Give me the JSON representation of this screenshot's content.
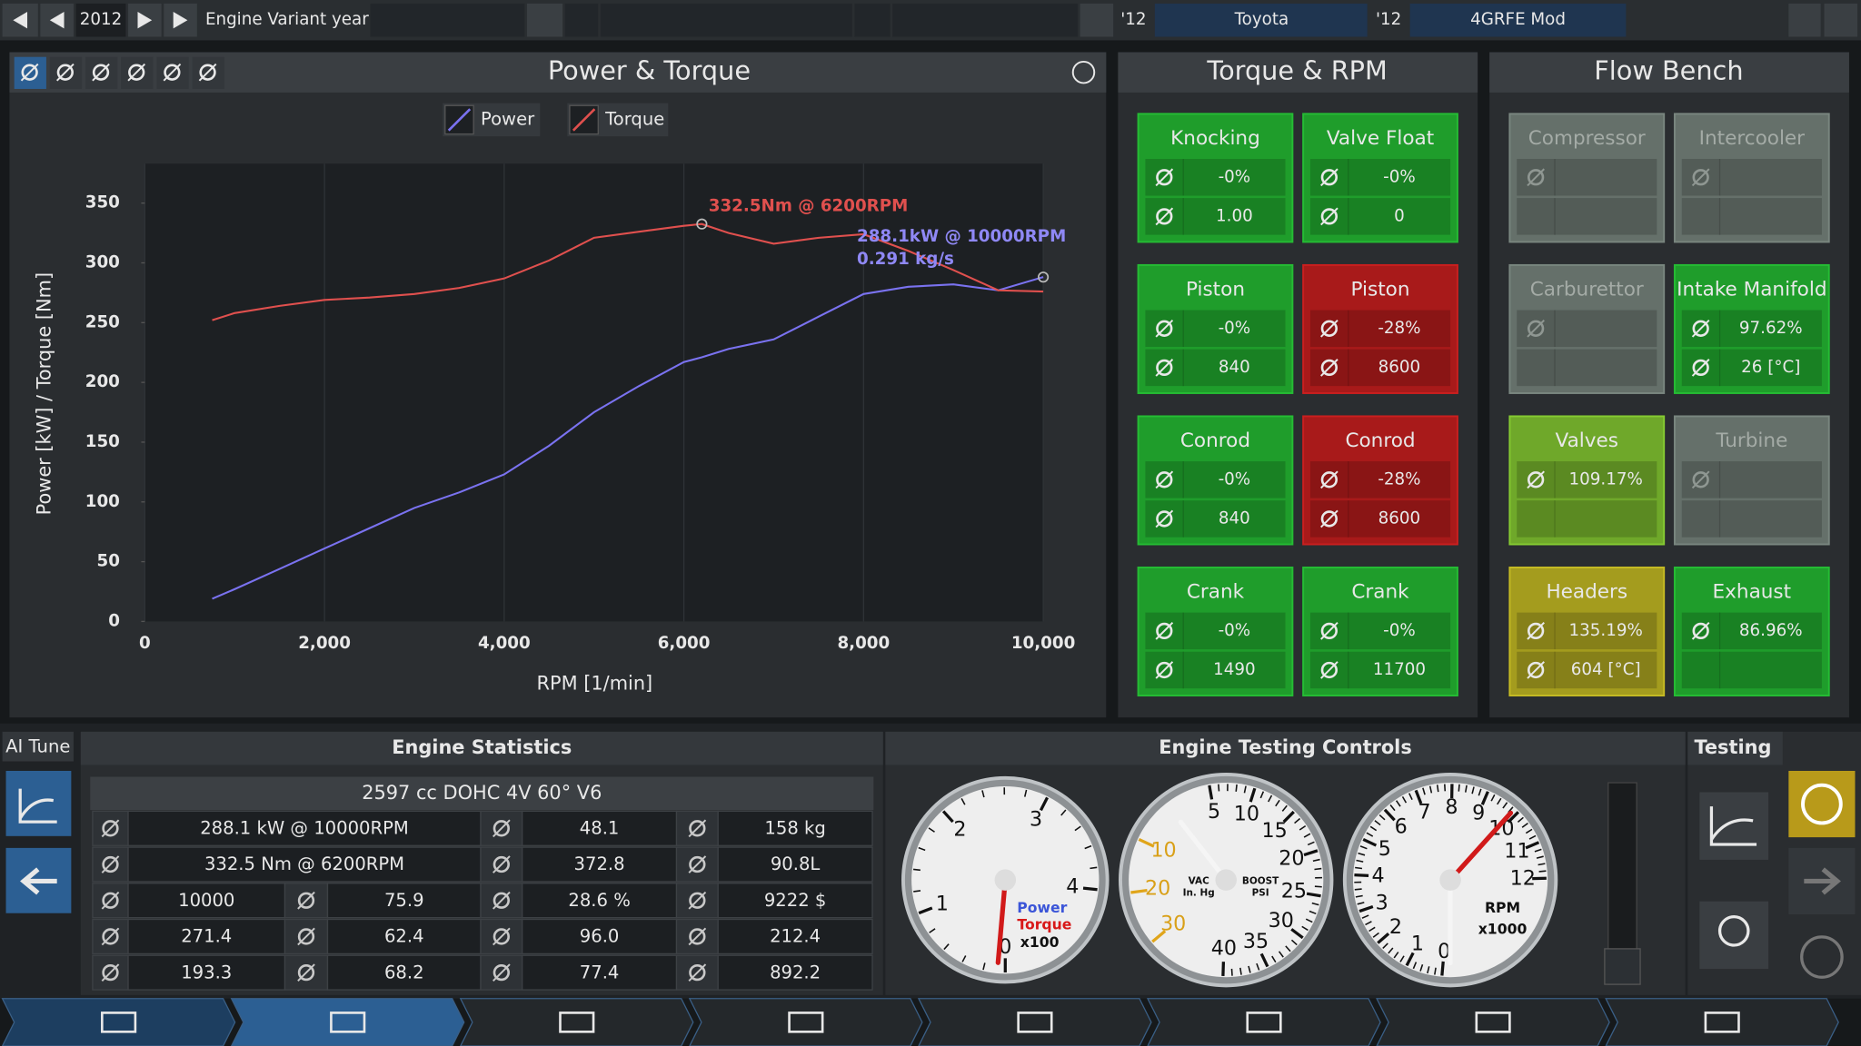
{
  "top_bar": {
    "year": "2012",
    "variant_label": "Engine Variant year",
    "model_year": "'12",
    "make": "Toyota",
    "variant_year": "'12",
    "variant": "4GRFE Mod"
  },
  "chart_data": {
    "type": "line",
    "title": "Power & Torque",
    "x_label": "RPM [1/min]",
    "y_label": "Power [kW] / Torque [Nm]",
    "x": [
      750,
      1000,
      1500,
      2000,
      2500,
      3000,
      3500,
      4000,
      4500,
      5000,
      5500,
      6000,
      6200,
      6500,
      7000,
      7500,
      8000,
      8500,
      9000,
      9500,
      10000
    ],
    "series": [
      {
        "name": "Power",
        "color": "#7a72f0",
        "values": [
          19,
          27,
          44,
          61,
          78,
          95,
          108,
          123,
          147,
          175,
          197,
          217,
          221,
          228,
          236,
          255,
          274,
          280,
          282,
          277,
          288.1
        ]
      },
      {
        "name": "Torque",
        "color": "#e0504e",
        "values": [
          252,
          258,
          264,
          269,
          271,
          274,
          279,
          287,
          302,
          321,
          326,
          331,
          332.5,
          325,
          316,
          321,
          324,
          310,
          294,
          277,
          276
        ]
      }
    ],
    "xlim": [
      0,
      10000
    ],
    "xticks": [
      0,
      {
        "value": 2000,
        "label": "2,000"
      },
      {
        "value": 4000,
        "label": "4,000"
      },
      {
        "value": 6000,
        "label": "6,000"
      },
      {
        "value": 8000,
        "label": "8,000"
      },
      {
        "value": 10000,
        "label": "10,000"
      }
    ],
    "ylim": [
      0,
      383
    ],
    "yticks": [
      0,
      50,
      100,
      150,
      200,
      250,
      300,
      350
    ],
    "grid": "x",
    "annotations": [
      {
        "text": "332.5Nm @ 6200RPM",
        "color": "#e0504e"
      },
      {
        "text": "288.1kW @ 10000RPM",
        "color": "#8f88f5"
      },
      {
        "text": "0.291 kg/s",
        "color": "#8f88f5"
      }
    ]
  },
  "torque_rpm": {
    "title": "Torque & RPM",
    "cards": [
      {
        "name": "Knocking",
        "color": "#1f9d2b",
        "values": [
          "-0%",
          "1.00"
        ]
      },
      {
        "name": "Valve Float",
        "color": "#1f9d2b",
        "values": [
          "-0%",
          "0"
        ]
      },
      {
        "name": "Piston",
        "color": "#1f9d2b",
        "values": [
          "-0%",
          "840"
        ]
      },
      {
        "name": "Piston",
        "color": "#a81a1a",
        "values": [
          "-28%",
          "8600"
        ]
      },
      {
        "name": "Conrod",
        "color": "#1f9d2b",
        "values": [
          "-0%",
          "840"
        ]
      },
      {
        "name": "Conrod",
        "color": "#a81a1a",
        "values": [
          "-28%",
          "8600"
        ]
      },
      {
        "name": "Crank",
        "color": "#1f9d2b",
        "values": [
          "-0%",
          "1490"
        ]
      },
      {
        "name": "Crank",
        "color": "#1f9d2b",
        "values": [
          "-0%",
          "11700"
        ]
      }
    ]
  },
  "flow_bench": {
    "title": "Flow Bench",
    "cards": [
      {
        "name": "Compressor",
        "color": "#65706a",
        "values": []
      },
      {
        "name": "Intercooler",
        "color": "#65706a",
        "values": []
      },
      {
        "name": "Carburettor",
        "color": "#65706a",
        "values": []
      },
      {
        "name": "Intake Manifold",
        "color": "#1f9d2b",
        "values": [
          "97.62%",
          "26 [°C]"
        ]
      },
      {
        "name": "Valves",
        "color": "#6fa82a",
        "values": [
          "109.17%"
        ]
      },
      {
        "name": "Turbine",
        "color": "#65706a",
        "values": []
      },
      {
        "name": "Headers",
        "color": "#a49c1e",
        "values": [
          "135.19%",
          "604 [°C]"
        ]
      },
      {
        "name": "Exhaust",
        "color": "#1f9d2b",
        "values": [
          "86.96%"
        ]
      }
    ]
  },
  "ai_tune": "AI Tune",
  "engine_statistics": {
    "title": "Engine Statistics",
    "summary": "2597 cc DOHC 4V 60° V6",
    "rows": [
      [
        "288.1 kW @ 10000RPM",
        "48.1",
        "158 kg"
      ],
      [
        "332.5 Nm @ 6200RPM",
        "372.8",
        "90.8L"
      ],
      [
        "10000",
        "75.9",
        "28.6 %",
        "9222 $"
      ],
      [
        "271.4",
        "62.4",
        "96.0",
        "212.4"
      ],
      [
        "193.3",
        "68.2",
        "77.4",
        "892.2"
      ]
    ]
  },
  "engine_testing_controls": {
    "title": "Engine Testing Controls",
    "gauges": [
      {
        "ticks": [
          "0",
          "1",
          "2",
          "3",
          "4"
        ],
        "labels": [
          "Power",
          "Torque",
          "x100"
        ]
      },
      {
        "ticks": [
          "5",
          "10",
          "15",
          "20",
          "25",
          "30",
          "35",
          "40"
        ],
        "vac_ticks": [
          "10",
          "20",
          "30"
        ],
        "labels": [
          "VAC",
          "In. Hg",
          "BOOST",
          "PSI"
        ]
      },
      {
        "ticks": [
          "0",
          "1",
          "2",
          "3",
          "4",
          "5",
          "6",
          "7",
          "8",
          "9",
          "10",
          "11",
          "12"
        ],
        "labels": [
          "RPM",
          "x1000"
        ]
      }
    ]
  },
  "testing": {
    "title": "Testing"
  }
}
